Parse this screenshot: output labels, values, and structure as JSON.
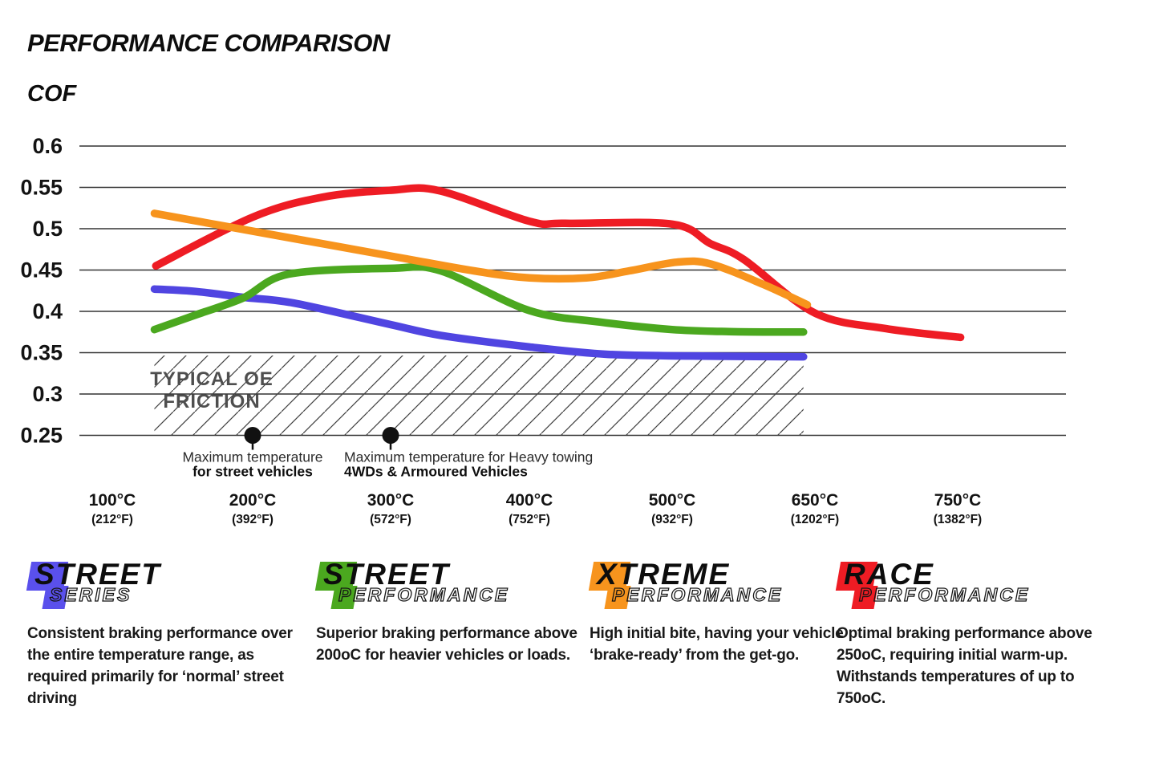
{
  "header": {
    "title": "PERFORMANCE COMPARISON",
    "y_axis_title": "COF"
  },
  "chart_data": {
    "type": "line",
    "title": "PERFORMANCE COMPARISON",
    "ylabel": "COF",
    "grid": true,
    "ylim": [
      0.25,
      0.6
    ],
    "y_ticks": [
      0.6,
      0.55,
      0.5,
      0.45,
      0.4,
      0.35,
      0.3,
      0.25
    ],
    "x_ticks": [
      {
        "temp": 100,
        "celsius": "100°C",
        "fahrenheit": "(212°F)"
      },
      {
        "temp": 200,
        "celsius": "200°C",
        "fahrenheit": "(392°F)"
      },
      {
        "temp": 300,
        "celsius": "300°C",
        "fahrenheit": "(572°F)"
      },
      {
        "temp": 400,
        "celsius": "400°C",
        "fahrenheit": "(752°F)"
      },
      {
        "temp": 500,
        "celsius": "500°C",
        "fahrenheit": "(932°F)"
      },
      {
        "temp": 650,
        "celsius": "650°C",
        "fahrenheit": "(1202°F)"
      },
      {
        "temp": 750,
        "celsius": "750°C",
        "fahrenheit": "(1382°F)"
      }
    ],
    "series": [
      {
        "name": "Street Series",
        "color": "#5045E1",
        "points": [
          [
            130,
            0.427
          ],
          [
            160,
            0.424
          ],
          [
            193,
            0.417
          ],
          [
            230,
            0.41
          ],
          [
            300,
            0.384
          ],
          [
            336,
            0.371
          ],
          [
            400,
            0.357
          ],
          [
            455,
            0.348
          ],
          [
            520,
            0.346
          ],
          [
            638,
            0.345
          ]
        ]
      },
      {
        "name": "Street Performance",
        "color": "#4BA81F",
        "points": [
          [
            130,
            0.378
          ],
          [
            160,
            0.396
          ],
          [
            193,
            0.416
          ],
          [
            226,
            0.445
          ],
          [
            300,
            0.452
          ],
          [
            336,
            0.449
          ],
          [
            400,
            0.401
          ],
          [
            450,
            0.387
          ],
          [
            500,
            0.378
          ],
          [
            560,
            0.3755
          ],
          [
            638,
            0.375
          ]
        ]
      },
      {
        "name": "Race Performance",
        "color": "#EE1C24",
        "points": [
          [
            131,
            0.455
          ],
          [
            200,
            0.514
          ],
          [
            250,
            0.538
          ],
          [
            300,
            0.5465
          ],
          [
            335,
            0.546
          ],
          [
            400,
            0.509
          ],
          [
            425,
            0.5065
          ],
          [
            500,
            0.5055
          ],
          [
            540,
            0.482
          ],
          [
            575,
            0.463
          ],
          [
            650,
            0.398
          ],
          [
            700,
            0.379
          ],
          [
            752,
            0.3685
          ]
        ]
      },
      {
        "name": "Xtreme Performance",
        "color": "#F7941D",
        "points": [
          [
            130,
            0.5185
          ],
          [
            200,
            0.497
          ],
          [
            300,
            0.467
          ],
          [
            360,
            0.449
          ],
          [
            400,
            0.4405
          ],
          [
            440,
            0.4405
          ],
          [
            470,
            0.449
          ],
          [
            505,
            0.4595
          ],
          [
            540,
            0.4575
          ],
          [
            595,
            0.433
          ],
          [
            642,
            0.408
          ]
        ]
      }
    ],
    "oe_band": {
      "label_line1": "TYPICAL OE",
      "label_line2": "FRICTION",
      "temp_from": 130,
      "temp_to": 638,
      "cof_from": 0.25,
      "cof_to": 0.3466
    },
    "markers": [
      {
        "temp": 200,
        "cof": 0.25,
        "line1": "Maximum temperature",
        "line2": "for street vehicles",
        "anchor": "middle",
        "label_dx": 0
      },
      {
        "temp": 300,
        "cof": 0.25,
        "line1": "Maximum temperature for Heavy towing",
        "line2": "4WDs & Armoured Vehicles",
        "anchor": "start",
        "label_dx": -58
      }
    ]
  },
  "legend": {
    "items": [
      {
        "line1": "STREET",
        "line2": "SERIES",
        "color": "#5a50ec",
        "description": "Consistent braking performance over the entire temperature range, as required primarily for ‘normal’ street driving"
      },
      {
        "line1": "STREET",
        "line2": "PERFORMANCE",
        "color": "#4BA81F",
        "description": "Superior braking performance above 200oC for heavier vehicles or loads."
      },
      {
        "line1": "XTREME",
        "line2": "PERFORMANCE",
        "color": "#F7941D",
        "description": "High initial bite, having your vehicle ‘brake-ready’ from the get-go."
      },
      {
        "line1": "RACE",
        "line2": "PERFORMANCE",
        "color": "#EE1C24",
        "description": "Optimal braking performance above 250oC, requiring initial warm-up. Withstands temperatures of up to 750oC."
      }
    ]
  }
}
